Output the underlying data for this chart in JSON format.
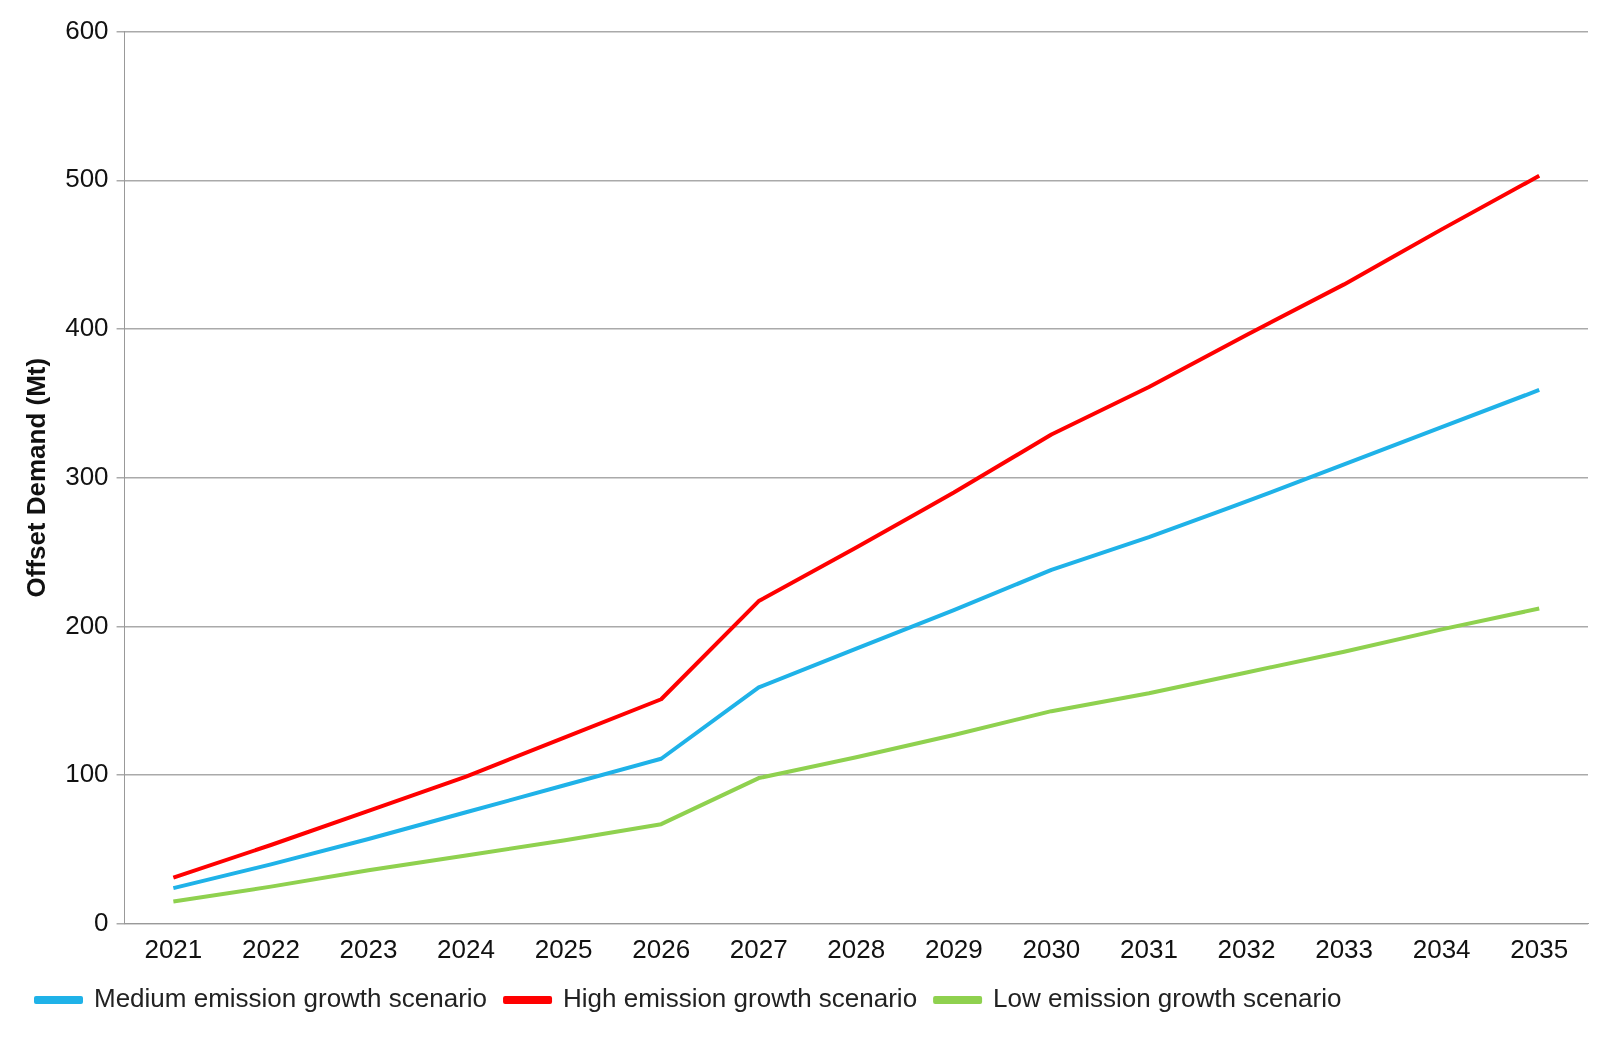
{
  "chart_data": {
    "type": "line",
    "ylabel": "Offset Demand (Mt)",
    "categories": [
      "2021",
      "2022",
      "2023",
      "2024",
      "2025",
      "2026",
      "2027",
      "2028",
      "2029",
      "2030",
      "2031",
      "2032",
      "2033",
      "2034",
      "2035"
    ],
    "series": [
      {
        "name": "Medium emission growth scenario",
        "color": "#1fb2e8",
        "values": [
          24,
          40,
          57,
          75,
          93,
          111,
          159,
          185,
          211,
          238,
          260,
          284,
          309,
          334,
          359
        ]
      },
      {
        "name": "High emission growth scenario",
        "color": "#ff0000",
        "values": [
          31,
          53,
          76,
          99,
          125,
          151,
          217,
          253,
          290,
          329,
          361,
          396,
          430,
          467,
          503
        ]
      },
      {
        "name": "Low emission growth scenario",
        "color": "#8fd14f",
        "values": [
          15,
          25,
          36,
          46,
          56,
          67,
          98,
          112,
          127,
          143,
          155,
          169,
          183,
          198,
          212
        ]
      }
    ],
    "ylim": [
      0,
      600
    ],
    "yticks": [
      0,
      100,
      200,
      300,
      400,
      500,
      600
    ],
    "grid": "y",
    "legend": "bottom",
    "marker": "none",
    "line_style": "solid"
  }
}
